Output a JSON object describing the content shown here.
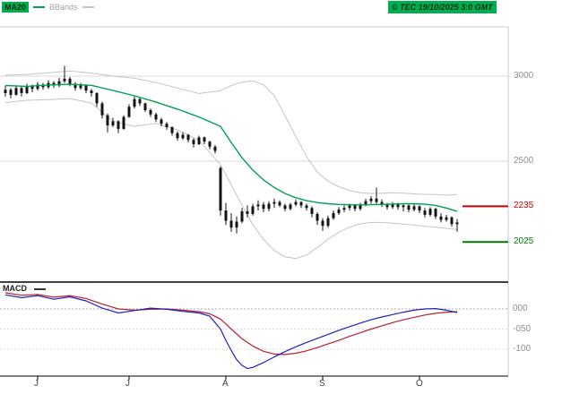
{
  "header": {
    "ma20_label": "MA20",
    "bbands_label": "BBands",
    "copyright": "© TEC 19/10/2025 3:0 GMT"
  },
  "colors": {
    "accent_green": "#00b050",
    "ma20_line": "#00a050",
    "bband_line": "#c4c4c4",
    "candle": "#141414",
    "grid": "#d9d9d9",
    "frame": "#cccccc",
    "divider": "#000000",
    "macd_line": "#2020b8",
    "macd_signal": "#b22230",
    "axis_text": "#8f8f8f"
  },
  "chart_data": {
    "type": "candlestick",
    "x_unit": "trading_days_june_to_october",
    "x_axis_labels": [
      {
        "text": "J",
        "i": 6
      },
      {
        "text": "J",
        "i": 23
      },
      {
        "text": "A",
        "i": 41
      },
      {
        "text": "S",
        "i": 59
      },
      {
        "text": "O",
        "i": 77
      }
    ],
    "price_axis": {
      "gridlines": [
        {
          "value": 3000,
          "label": "3000"
        },
        {
          "value": 2500,
          "label": "2500"
        }
      ]
    },
    "levels": [
      {
        "value": 2235,
        "label": "2235",
        "color": "#cc0000",
        "role": "resistance"
      },
      {
        "value": 2025,
        "label": "2025",
        "color": "#007a00",
        "role": "support"
      }
    ],
    "candles_ohlc": [
      [
        2900,
        2945,
        2880,
        2920
      ],
      [
        2920,
        2930,
        2870,
        2890
      ],
      [
        2890,
        2945,
        2885,
        2930
      ],
      [
        2930,
        2940,
        2880,
        2900
      ],
      [
        2900,
        2955,
        2895,
        2940
      ],
      [
        2940,
        2950,
        2905,
        2925
      ],
      [
        2925,
        2965,
        2915,
        2950
      ],
      [
        2950,
        2960,
        2920,
        2935
      ],
      [
        2935,
        2975,
        2925,
        2960
      ],
      [
        2960,
        2970,
        2930,
        2945
      ],
      [
        2945,
        2990,
        2935,
        2970
      ],
      [
        2970,
        3060,
        2960,
        2985
      ],
      [
        2985,
        2995,
        2940,
        2955
      ],
      [
        2955,
        2965,
        2915,
        2930
      ],
      [
        2930,
        2960,
        2920,
        2945
      ],
      [
        2945,
        2950,
        2900,
        2915
      ],
      [
        2915,
        2925,
        2880,
        2900
      ],
      [
        2900,
        2905,
        2820,
        2840
      ],
      [
        2840,
        2850,
        2750,
        2770
      ],
      [
        2770,
        2780,
        2670,
        2710
      ],
      [
        2710,
        2755,
        2700,
        2735
      ],
      [
        2735,
        2740,
        2665,
        2690
      ],
      [
        2690,
        2770,
        2685,
        2760
      ],
      [
        2760,
        2835,
        2755,
        2820
      ],
      [
        2820,
        2880,
        2810,
        2865
      ],
      [
        2865,
        2875,
        2825,
        2840
      ],
      [
        2840,
        2845,
        2790,
        2800
      ],
      [
        2800,
        2810,
        2760,
        2775
      ],
      [
        2775,
        2785,
        2730,
        2745
      ],
      [
        2745,
        2755,
        2705,
        2720
      ],
      [
        2720,
        2730,
        2685,
        2700
      ],
      [
        2700,
        2705,
        2650,
        2665
      ],
      [
        2665,
        2675,
        2620,
        2635
      ],
      [
        2635,
        2670,
        2625,
        2655
      ],
      [
        2655,
        2660,
        2610,
        2625
      ],
      [
        2625,
        2635,
        2580,
        2600
      ],
      [
        2600,
        2650,
        2595,
        2640
      ],
      [
        2640,
        2645,
        2600,
        2615
      ],
      [
        2615,
        2620,
        2570,
        2585
      ],
      [
        2585,
        2595,
        2545,
        2560
      ],
      [
        2460,
        2470,
        2180,
        2210
      ],
      [
        2210,
        2255,
        2125,
        2150
      ],
      [
        2150,
        2195,
        2085,
        2110
      ],
      [
        2110,
        2175,
        2075,
        2145
      ],
      [
        2145,
        2225,
        2135,
        2205
      ],
      [
        2205,
        2240,
        2170,
        2190
      ],
      [
        2190,
        2250,
        2180,
        2235
      ],
      [
        2235,
        2270,
        2210,
        2245
      ],
      [
        2245,
        2260,
        2200,
        2220
      ],
      [
        2220,
        2265,
        2205,
        2250
      ],
      [
        2250,
        2280,
        2225,
        2260
      ],
      [
        2260,
        2270,
        2230,
        2240
      ],
      [
        2240,
        2250,
        2205,
        2220
      ],
      [
        2220,
        2255,
        2210,
        2245
      ],
      [
        2245,
        2275,
        2235,
        2260
      ],
      [
        2260,
        2265,
        2225,
        2240
      ],
      [
        2240,
        2250,
        2210,
        2225
      ],
      [
        2225,
        2235,
        2170,
        2190
      ],
      [
        2190,
        2200,
        2125,
        2150
      ],
      [
        2150,
        2165,
        2090,
        2120
      ],
      [
        2120,
        2180,
        2110,
        2165
      ],
      [
        2165,
        2210,
        2155,
        2195
      ],
      [
        2195,
        2230,
        2185,
        2215
      ],
      [
        2215,
        2240,
        2200,
        2225
      ],
      [
        2225,
        2250,
        2210,
        2240
      ],
      [
        2240,
        2245,
        2205,
        2220
      ],
      [
        2220,
        2255,
        2210,
        2245
      ],
      [
        2245,
        2280,
        2235,
        2265
      ],
      [
        2265,
        2295,
        2250,
        2280
      ],
      [
        2280,
        2345,
        2250,
        2260
      ],
      [
        2260,
        2275,
        2230,
        2245
      ],
      [
        2245,
        2255,
        2215,
        2230
      ],
      [
        2230,
        2260,
        2220,
        2250
      ],
      [
        2250,
        2255,
        2215,
        2230
      ],
      [
        2230,
        2250,
        2205,
        2240
      ],
      [
        2240,
        2245,
        2200,
        2215
      ],
      [
        2215,
        2250,
        2205,
        2235
      ],
      [
        2235,
        2240,
        2195,
        2210
      ],
      [
        2210,
        2225,
        2170,
        2185
      ],
      [
        2185,
        2230,
        2175,
        2220
      ],
      [
        2220,
        2225,
        2160,
        2175
      ],
      [
        2175,
        2195,
        2140,
        2155
      ],
      [
        2155,
        2185,
        2145,
        2170
      ],
      [
        2170,
        2175,
        2115,
        2130
      ],
      [
        2130,
        2160,
        2085,
        2140
      ]
    ],
    "ma20_points": [
      [
        0,
        2945
      ],
      [
        4,
        2940
      ],
      [
        8,
        2948
      ],
      [
        12,
        2952
      ],
      [
        16,
        2946
      ],
      [
        20,
        2916
      ],
      [
        24,
        2884
      ],
      [
        28,
        2848
      ],
      [
        32,
        2806
      ],
      [
        36,
        2760
      ],
      [
        40,
        2705
      ],
      [
        42,
        2610
      ],
      [
        44,
        2520
      ],
      [
        46,
        2448
      ],
      [
        48,
        2390
      ],
      [
        50,
        2345
      ],
      [
        52,
        2310
      ],
      [
        54,
        2285
      ],
      [
        56,
        2268
      ],
      [
        58,
        2257
      ],
      [
        60,
        2250
      ],
      [
        62,
        2246
      ],
      [
        64,
        2244
      ],
      [
        66,
        2243
      ],
      [
        68,
        2244
      ],
      [
        70,
        2246
      ],
      [
        72,
        2248
      ],
      [
        74,
        2250
      ],
      [
        76,
        2250
      ],
      [
        78,
        2247
      ],
      [
        80,
        2240
      ],
      [
        82,
        2225
      ],
      [
        84,
        2205
      ]
    ],
    "bb_upper_points": [
      [
        0,
        3005
      ],
      [
        4,
        3010
      ],
      [
        8,
        3020
      ],
      [
        12,
        3030
      ],
      [
        16,
        3018
      ],
      [
        20,
        3000
      ],
      [
        24,
        2988
      ],
      [
        28,
        2962
      ],
      [
        32,
        2930
      ],
      [
        36,
        2898
      ],
      [
        40,
        2915
      ],
      [
        42,
        2945
      ],
      [
        44,
        2965
      ],
      [
        46,
        2972
      ],
      [
        48,
        2950
      ],
      [
        50,
        2885
      ],
      [
        52,
        2768
      ],
      [
        54,
        2645
      ],
      [
        56,
        2528
      ],
      [
        58,
        2435
      ],
      [
        60,
        2382
      ],
      [
        62,
        2350
      ],
      [
        64,
        2328
      ],
      [
        66,
        2315
      ],
      [
        68,
        2310
      ],
      [
        70,
        2312
      ],
      [
        72,
        2315
      ],
      [
        74,
        2312
      ],
      [
        76,
        2308
      ],
      [
        78,
        2305
      ],
      [
        80,
        2305
      ],
      [
        82,
        2300
      ],
      [
        84,
        2305
      ]
    ],
    "bb_lower_points": [
      [
        0,
        2845
      ],
      [
        4,
        2858
      ],
      [
        8,
        2862
      ],
      [
        12,
        2868
      ],
      [
        16,
        2842
      ],
      [
        20,
        2735
      ],
      [
        24,
        2705
      ],
      [
        28,
        2722
      ],
      [
        32,
        2684
      ],
      [
        36,
        2622
      ],
      [
        40,
        2480
      ],
      [
        42,
        2360
      ],
      [
        44,
        2240
      ],
      [
        46,
        2128
      ],
      [
        48,
        2040
      ],
      [
        50,
        1975
      ],
      [
        52,
        1938
      ],
      [
        54,
        1928
      ],
      [
        56,
        1948
      ],
      [
        58,
        1992
      ],
      [
        60,
        2042
      ],
      [
        62,
        2082
      ],
      [
        64,
        2112
      ],
      [
        66,
        2132
      ],
      [
        68,
        2140
      ],
      [
        70,
        2140
      ],
      [
        72,
        2136
      ],
      [
        74,
        2130
      ],
      [
        76,
        2124
      ],
      [
        78,
        2118
      ],
      [
        80,
        2112
      ],
      [
        82,
        2106
      ],
      [
        84,
        2098
      ]
    ],
    "macd_axis": {
      "label": "MACD",
      "gridlines": [
        {
          "value": 0,
          "label": "000"
        },
        {
          "value": -50,
          "label": "-050"
        },
        {
          "value": -100,
          "label": "-100"
        }
      ]
    },
    "macd_points": [
      [
        0,
        35
      ],
      [
        3,
        28
      ],
      [
        6,
        33
      ],
      [
        9,
        24
      ],
      [
        12,
        30
      ],
      [
        15,
        20
      ],
      [
        18,
        2
      ],
      [
        21,
        -10
      ],
      [
        24,
        -4
      ],
      [
        27,
        2
      ],
      [
        30,
        -1
      ],
      [
        33,
        -6
      ],
      [
        36,
        -10
      ],
      [
        38,
        -18
      ],
      [
        40,
        -50
      ],
      [
        41,
        -78
      ],
      [
        42,
        -103
      ],
      [
        43,
        -126
      ],
      [
        44,
        -140
      ],
      [
        45,
        -148
      ],
      [
        46,
        -145
      ],
      [
        48,
        -133
      ],
      [
        50,
        -119
      ],
      [
        52,
        -106
      ],
      [
        54,
        -94
      ],
      [
        56,
        -83
      ],
      [
        58,
        -73
      ],
      [
        60,
        -63
      ],
      [
        62,
        -53
      ],
      [
        64,
        -44
      ],
      [
        66,
        -35
      ],
      [
        68,
        -27
      ],
      [
        70,
        -20
      ],
      [
        72,
        -14
      ],
      [
        74,
        -8
      ],
      [
        76,
        -3
      ],
      [
        78,
        0
      ],
      [
        80,
        1
      ],
      [
        82,
        -3
      ],
      [
        84,
        -9
      ]
    ],
    "macd_signal_points": [
      [
        0,
        40
      ],
      [
        3,
        34
      ],
      [
        6,
        36
      ],
      [
        9,
        29
      ],
      [
        12,
        33
      ],
      [
        15,
        26
      ],
      [
        18,
        12
      ],
      [
        21,
        0
      ],
      [
        24,
        -3
      ],
      [
        27,
        -1
      ],
      [
        30,
        0
      ],
      [
        33,
        -3
      ],
      [
        36,
        -7
      ],
      [
        38,
        -12
      ],
      [
        40,
        -25
      ],
      [
        42,
        -50
      ],
      [
        44,
        -74
      ],
      [
        46,
        -92
      ],
      [
        48,
        -105
      ],
      [
        50,
        -112
      ],
      [
        52,
        -113
      ],
      [
        54,
        -110
      ],
      [
        56,
        -104
      ],
      [
        58,
        -96
      ],
      [
        60,
        -87
      ],
      [
        62,
        -78
      ],
      [
        64,
        -68
      ],
      [
        66,
        -59
      ],
      [
        68,
        -50
      ],
      [
        70,
        -42
      ],
      [
        72,
        -34
      ],
      [
        74,
        -27
      ],
      [
        76,
        -21
      ],
      [
        78,
        -15
      ],
      [
        80,
        -11
      ],
      [
        82,
        -8
      ],
      [
        84,
        -7
      ]
    ]
  }
}
